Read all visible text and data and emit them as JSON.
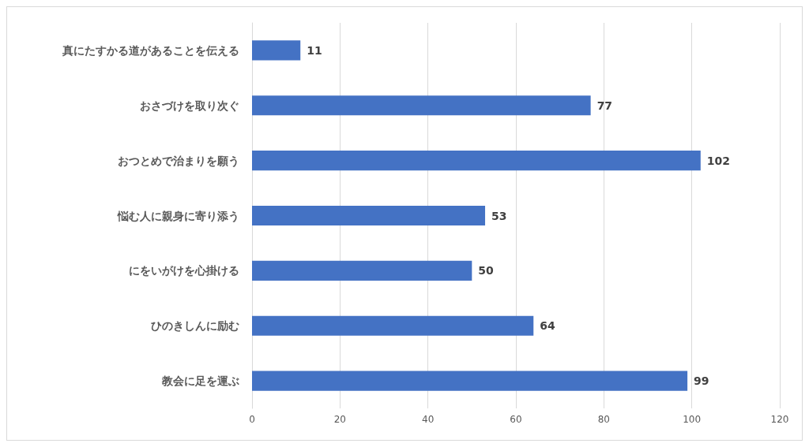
{
  "chart_data": {
    "type": "bar",
    "orientation": "horizontal",
    "categories": [
      "真にたすかる道があることを伝える",
      "おさづけを取り次ぐ",
      "おつとめで治まりを願う",
      "悩む人に親身に寄り添う",
      "にをいがけを心掛ける",
      "ひのきしんに励む",
      "教会に足を運ぶ"
    ],
    "values": [
      11,
      77,
      102,
      53,
      50,
      64,
      99
    ],
    "color": "#4472c4",
    "xlim": [
      0,
      120
    ],
    "xticks": [
      0,
      20,
      40,
      60,
      80,
      100,
      120
    ],
    "grid": "x",
    "data_labels": true
  }
}
